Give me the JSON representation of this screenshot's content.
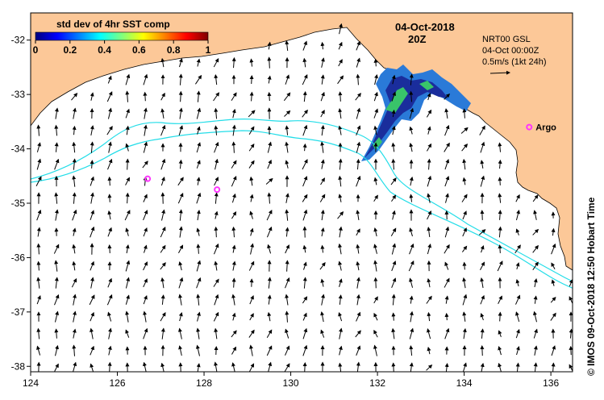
{
  "colorbar": {
    "title": "std dev of 4hr SST comp",
    "ticks": [
      "0",
      "0.2",
      "0.4",
      "0.6",
      "0.8",
      "1"
    ],
    "stops": [
      "#00007f",
      "#0000ff",
      "#007fff",
      "#00ffff",
      "#7fff7f",
      "#ffff00",
      "#ff7f00",
      "#ff0000",
      "#7f0000"
    ]
  },
  "header": {
    "date": "04-Oct-2018",
    "time": "20Z"
  },
  "info": {
    "product": "NRT00 GSL",
    "valid": "04-Oct 00:00Z",
    "scale": "0.5m/s (1kt 24h)"
  },
  "axes": {
    "x_ticks": [
      "124",
      "126",
      "128",
      "130",
      "132",
      "134",
      "136"
    ],
    "y_ticks": [
      "-32",
      "-33",
      "-34",
      "-35",
      "-36",
      "-37",
      "-38"
    ],
    "lon_range": [
      124,
      136.5
    ],
    "lat_range": [
      -38.1,
      -31.5
    ]
  },
  "argo": {
    "label": "Argo",
    "floats": [
      {
        "lon": 126.7,
        "lat": -34.55
      },
      {
        "lon": 128.3,
        "lat": -34.75
      },
      {
        "lon": 135.5,
        "lat": -33.6
      }
    ]
  },
  "credit": "© IMOS 09-Oct-2018 12:50 Hobart Time",
  "colors": {
    "land": "#fcc898",
    "contour": "#22dde8",
    "argo": "#ff33ff",
    "sst_core": "#1a2d9c",
    "sst_edge": "#2a7ad8",
    "sst_warm": "#39c46a"
  }
}
